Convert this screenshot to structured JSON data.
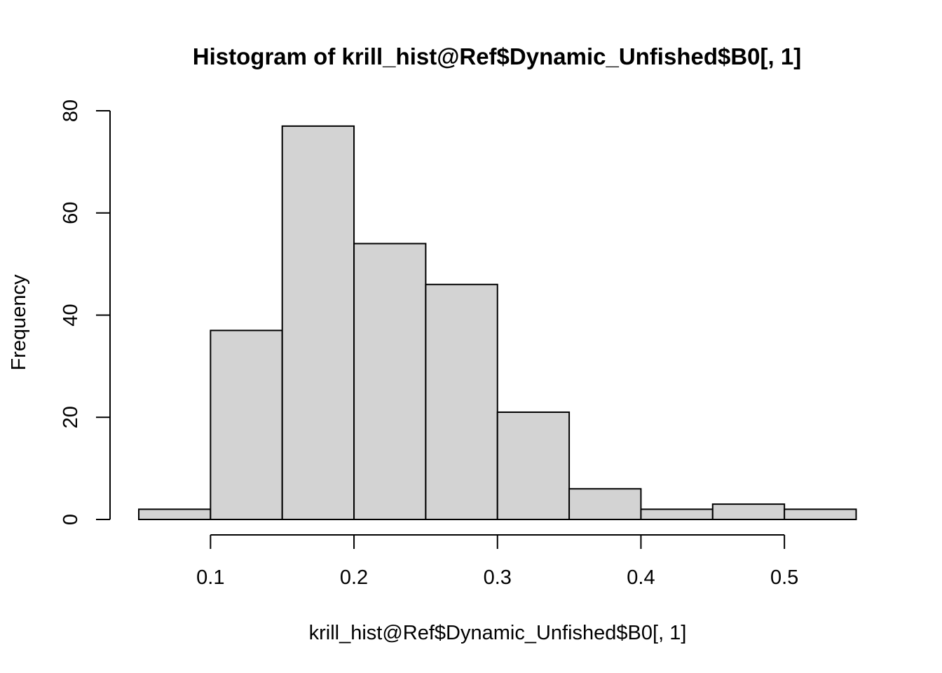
{
  "chart_data": {
    "type": "bar",
    "title": "Histogram of krill_hist@Ref$Dynamic_Unfished$B0[, 1]",
    "xlabel": "krill_hist@Ref$Dynamic_Unfished$B0[, 1]",
    "ylabel": "Frequency",
    "bins": [
      {
        "start": 0.05,
        "end": 0.1,
        "count": 2
      },
      {
        "start": 0.1,
        "end": 0.15,
        "count": 37
      },
      {
        "start": 0.15,
        "end": 0.2,
        "count": 77
      },
      {
        "start": 0.2,
        "end": 0.25,
        "count": 54
      },
      {
        "start": 0.25,
        "end": 0.3,
        "count": 46
      },
      {
        "start": 0.3,
        "end": 0.35,
        "count": 21
      },
      {
        "start": 0.35,
        "end": 0.4,
        "count": 6
      },
      {
        "start": 0.4,
        "end": 0.45,
        "count": 2
      },
      {
        "start": 0.45,
        "end": 0.5,
        "count": 3
      },
      {
        "start": 0.5,
        "end": 0.55,
        "count": 2
      }
    ],
    "x_ticks": [
      "0.1",
      "0.2",
      "0.3",
      "0.4",
      "0.5"
    ],
    "x_tick_values": [
      0.1,
      0.2,
      0.3,
      0.4,
      0.5
    ],
    "y_ticks": [
      "0",
      "20",
      "40",
      "60",
      "80"
    ],
    "y_tick_values": [
      0,
      20,
      40,
      60,
      80
    ],
    "xlim": [
      0.05,
      0.55
    ],
    "ylim": [
      0,
      80
    ],
    "grid": false,
    "bar_color": "#d3d3d3",
    "border_color": "#000000"
  }
}
